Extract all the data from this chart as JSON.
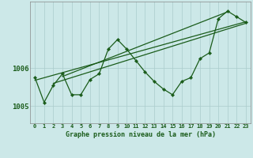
{
  "title": "Graphe pression niveau de la mer (hPa)",
  "bg_color": "#cce8e8",
  "grid_color": "#aacccc",
  "line_color": "#1a5c1a",
  "x_min": -0.5,
  "x_max": 23.5,
  "y_min": 1004.55,
  "y_max": 1007.75,
  "y_ticks": [
    1005,
    1006
  ],
  "hours": [
    0,
    1,
    2,
    3,
    4,
    5,
    6,
    7,
    8,
    9,
    10,
    11,
    12,
    13,
    14,
    15,
    16,
    17,
    18,
    19,
    20,
    21,
    22,
    23
  ],
  "pressure": [
    1005.75,
    1005.1,
    1005.55,
    1005.85,
    1005.3,
    1005.3,
    1005.7,
    1005.85,
    1006.5,
    1006.75,
    1006.5,
    1006.2,
    1005.9,
    1005.65,
    1005.45,
    1005.3,
    1005.65,
    1005.75,
    1006.25,
    1006.4,
    1007.3,
    1007.5,
    1007.35,
    1007.2
  ],
  "trend_lines": [
    {
      "x": [
        0,
        23
      ],
      "y": [
        1005.68,
        1007.22
      ]
    },
    {
      "x": [
        2,
        23
      ],
      "y": [
        1005.6,
        1007.18
      ]
    },
    {
      "x": [
        3,
        21
      ],
      "y": [
        1005.78,
        1007.48
      ]
    }
  ],
  "xlabel_fontsize": 6.0,
  "ytick_fontsize": 6.5,
  "xtick_fontsize": 5.0
}
